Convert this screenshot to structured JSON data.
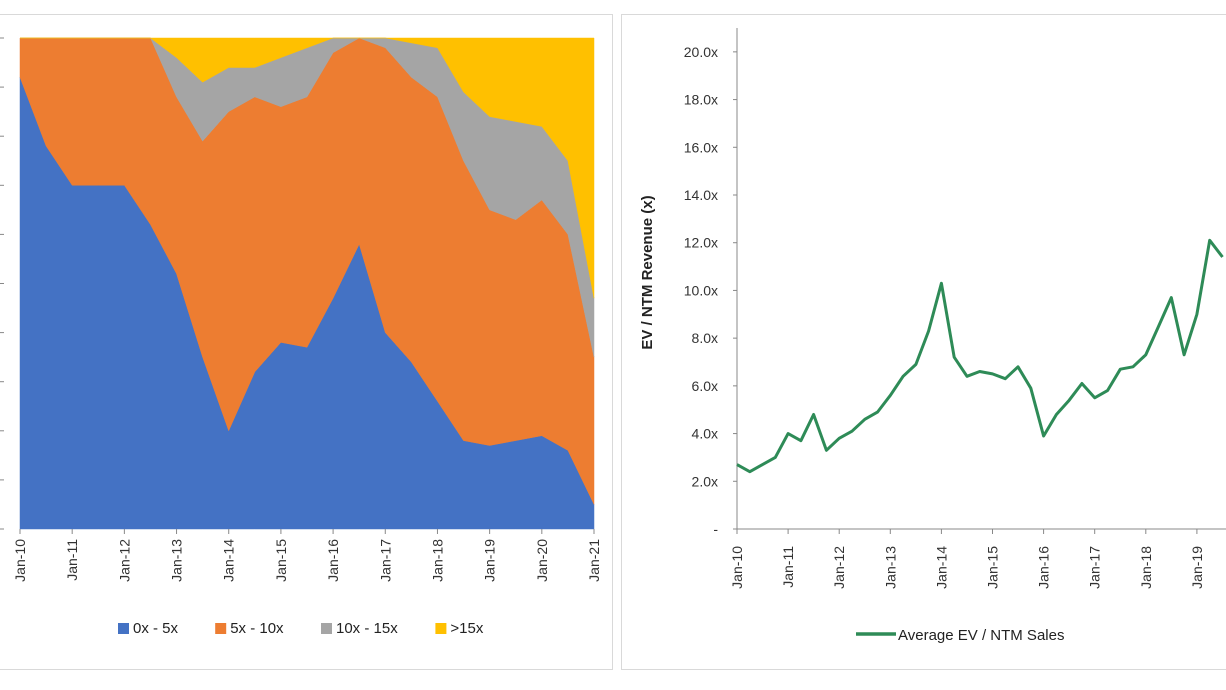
{
  "chart_data": [
    {
      "type": "area",
      "stacked": "percent",
      "title": "",
      "xlabel": "",
      "ylabel": "",
      "x_tick_labels": [
        "Jan-10",
        "Jan-11",
        "Jan-12",
        "Jan-13",
        "Jan-14",
        "Jan-15",
        "Jan-16",
        "Jan-17",
        "Jan-18",
        "Jan-19",
        "Jan-20",
        "Jan-21"
      ],
      "x": [
        "Jan-10",
        "Jul-10",
        "Jan-11",
        "Jul-11",
        "Jan-12",
        "Jul-12",
        "Jan-13",
        "Jul-13",
        "Jan-14",
        "Jul-14",
        "Jan-15",
        "Jul-15",
        "Jan-16",
        "Jul-16",
        "Jan-17",
        "Jul-17",
        "Jan-18",
        "Jul-18",
        "Jan-19",
        "Jul-19",
        "Jan-20",
        "Jul-20",
        "Jan-21"
      ],
      "series": [
        {
          "name": "0x - 5x",
          "color": "#4472C4",
          "values": [
            92,
            78,
            70,
            70,
            70,
            62,
            52,
            35,
            20,
            32,
            38,
            37,
            47,
            58,
            40,
            34,
            26,
            18,
            17,
            18,
            19,
            16,
            5
          ]
        },
        {
          "name": "5x - 10x",
          "color": "#ED7D31",
          "values": [
            8,
            22,
            30,
            30,
            30,
            38,
            36,
            44,
            65,
            56,
            48,
            51,
            50,
            42,
            58,
            58,
            62,
            57,
            48,
            45,
            48,
            44,
            30
          ]
        },
        {
          "name": "10x - 15x",
          "color": "#A5A5A5",
          "values": [
            0,
            0,
            0,
            0,
            0,
            0,
            8,
            12,
            9,
            6,
            10,
            10,
            3,
            0,
            2,
            7,
            10,
            14,
            19,
            20,
            15,
            15,
            12
          ]
        },
        {
          "name": ">15x",
          "color": "#FFC000",
          "values": [
            0,
            0,
            0,
            0,
            0,
            0,
            4,
            9,
            6,
            6,
            4,
            2,
            0,
            0,
            0,
            1,
            2,
            11,
            16,
            17,
            18,
            25,
            53
          ]
        }
      ],
      "ylim": [
        0,
        100
      ],
      "legend": "bottom"
    },
    {
      "type": "line",
      "title": "",
      "xlabel": "",
      "ylabel": "EV / NTM Revenue (x)",
      "y_tick_labels": [
        "-",
        "2.0x",
        "4.0x",
        "6.0x",
        "8.0x",
        "10.0x",
        "12.0x",
        "14.0x",
        "16.0x",
        "18.0x",
        "20.0x"
      ],
      "x_tick_labels": [
        "Jan-10",
        "Jan-11",
        "Jan-12",
        "Jan-13",
        "Jan-14",
        "Jan-15",
        "Jan-16",
        "Jan-17",
        "Jan-18",
        "Jan-19"
      ],
      "ylim": [
        0,
        21
      ],
      "x": [
        "Jan-10",
        "Apr-10",
        "Jul-10",
        "Oct-10",
        "Jan-11",
        "Apr-11",
        "Jul-11",
        "Oct-11",
        "Jan-12",
        "Apr-12",
        "Jul-12",
        "Oct-12",
        "Jan-13",
        "Apr-13",
        "Jul-13",
        "Oct-13",
        "Jan-14",
        "Apr-14",
        "Jul-14",
        "Oct-14",
        "Jan-15",
        "Apr-15",
        "Jul-15",
        "Oct-15",
        "Jan-16",
        "Apr-16",
        "Jul-16",
        "Oct-16",
        "Jan-17",
        "Apr-17",
        "Jul-17",
        "Oct-17",
        "Jan-18",
        "Apr-18",
        "Jul-18",
        "Oct-18",
        "Jan-19",
        "Apr-19",
        "Jul-19"
      ],
      "series": [
        {
          "name": "Average EV / NTM Sales",
          "color": "#2E8B57",
          "values": [
            2.7,
            2.4,
            2.7,
            3.0,
            4.0,
            3.7,
            4.8,
            3.3,
            3.8,
            4.1,
            4.6,
            4.9,
            5.6,
            6.4,
            6.9,
            8.3,
            10.3,
            7.2,
            6.4,
            6.6,
            6.5,
            6.3,
            6.8,
            5.9,
            3.9,
            4.8,
            5.4,
            6.1,
            5.5,
            5.8,
            6.7,
            6.8,
            7.3,
            8.5,
            9.7,
            7.3,
            9.0,
            12.1,
            11.4
          ]
        }
      ],
      "legend": "bottom"
    }
  ]
}
